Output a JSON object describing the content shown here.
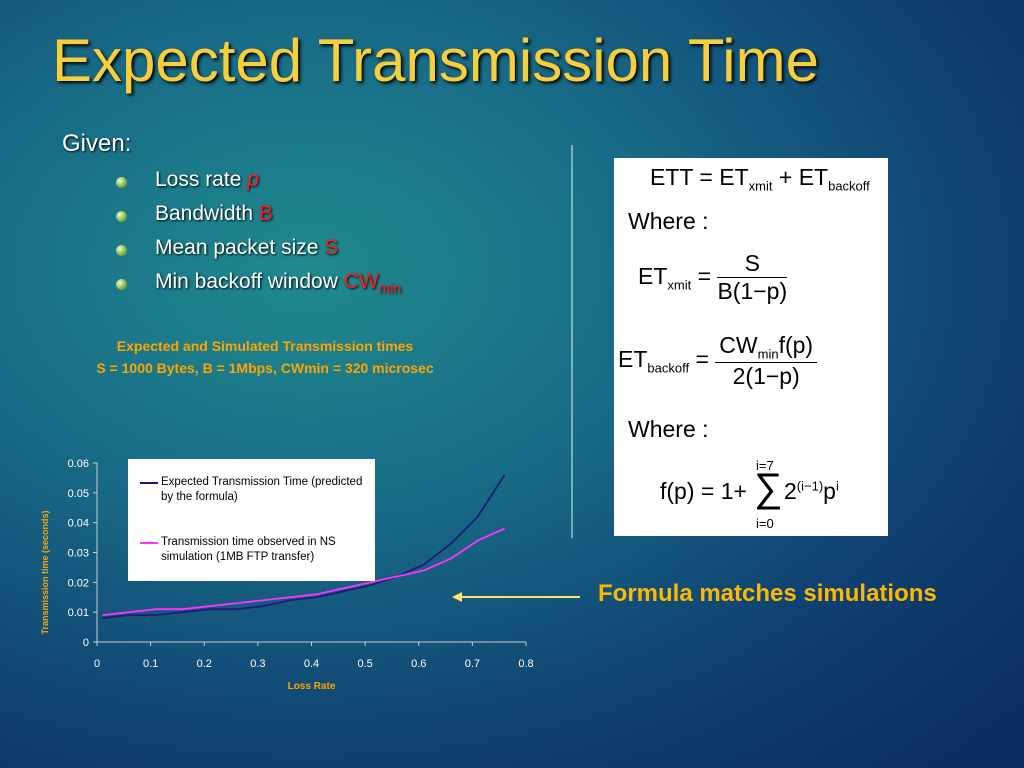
{
  "slide_title": "Expected Transmission Time",
  "given": {
    "label": "Given:",
    "items": [
      [
        {
          "t": "Loss rate "
        },
        {
          "var": "p"
        }
      ],
      [
        {
          "t": "Bandwidth "
        },
        {
          "var": "B"
        }
      ],
      [
        {
          "t": "Mean packet size "
        },
        {
          "var": "S"
        }
      ],
      [
        {
          "t": "Min backoff window "
        },
        {
          "var": "CW"
        },
        {
          "varsub": "min"
        }
      ]
    ]
  },
  "chart_data": {
    "type": "line",
    "title": "Expected and Simulated Transmission times",
    "subtitle": "S = 1000 Bytes, B = 1Mbps, CWmin = 320 microsec",
    "x_label": "Loss Rate",
    "y_label": "Transmission time (seconds)",
    "x": [
      0.01,
      0.06,
      0.11,
      0.16,
      0.21,
      0.26,
      0.31,
      0.36,
      0.41,
      0.46,
      0.51,
      0.56,
      0.61,
      0.66,
      0.71,
      0.76
    ],
    "series": [
      {
        "name": "Expected Transmission Time (predicted by the formula)",
        "color": "#1c1c78",
        "values": [
          0.008,
          0.009,
          0.009,
          0.01,
          0.011,
          0.011,
          0.012,
          0.014,
          0.015,
          0.017,
          0.019,
          0.022,
          0.026,
          0.033,
          0.042,
          0.056
        ]
      },
      {
        "name": "Transmission time observed in NS simulation (1MB FTP transfer)",
        "color": "#ff33ff",
        "values": [
          0.009,
          0.01,
          0.011,
          0.011,
          0.012,
          0.013,
          0.014,
          0.015,
          0.016,
          0.018,
          0.02,
          0.022,
          0.024,
          0.028,
          0.034,
          0.038
        ]
      }
    ],
    "xlim": [
      0,
      0.8
    ],
    "xticks": [
      0,
      0.1,
      0.2,
      0.3,
      0.4,
      0.5,
      0.6,
      0.7,
      0.8
    ],
    "ylim": [
      0,
      0.06
    ],
    "yticks": [
      0,
      0.01,
      0.02,
      0.03,
      0.04,
      0.05,
      0.06
    ],
    "legend": "upper left"
  },
  "formula_box": {
    "line1": [
      {
        "t": "ETT = ET"
      },
      {
        "sub": "xmit"
      },
      {
        "t": " + ET"
      },
      {
        "sub": "backoff"
      }
    ],
    "where1": "Where :",
    "xmit": {
      "lhs": [
        {
          "t": "ET"
        },
        {
          "sub": "xmit"
        },
        {
          "t": " = "
        }
      ],
      "num": [
        {
          "t": "S"
        }
      ],
      "den": [
        {
          "t": "B(1−p)"
        }
      ]
    },
    "backoff": {
      "lhs": [
        {
          "t": "ET"
        },
        {
          "sub": "backoff"
        },
        {
          "t": " = "
        }
      ],
      "num": [
        {
          "t": "CW"
        },
        {
          "sub": "min"
        },
        {
          "t": "f(p)"
        }
      ],
      "den": [
        {
          "t": "2(1−p)"
        }
      ]
    },
    "where2": "Where :",
    "fp": {
      "lhs": "f(p) = 1+",
      "sum_top": "i=7",
      "sum": "∑",
      "sum_bottom": "i=0",
      "rhs": [
        {
          "t": "2"
        },
        {
          "sup": "(i−1)"
        },
        {
          "t": "p"
        },
        {
          "sup": "i"
        }
      ]
    }
  },
  "annotation": "Formula matches simulations"
}
